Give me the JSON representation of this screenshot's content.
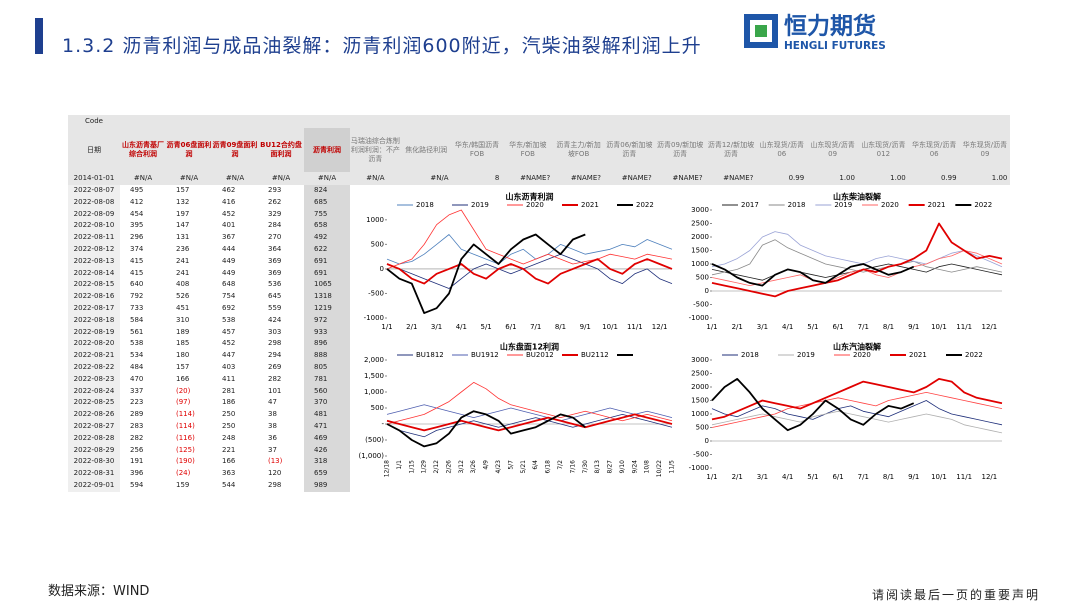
{
  "header": {
    "title": "1.3.2 沥青利润与成品油裂解：沥青利润600附近，汽柴油裂解利润上升",
    "logo_name": "恒力期货",
    "logo_en": "HENGLI FUTURES"
  },
  "table": {
    "code_label": "Code",
    "columns": [
      "日期",
      "山东沥青基厂综合利润",
      "沥青06盘面利润",
      "沥青09盘面利润",
      "BU12合约盘面利润",
      "沥青利润",
      "马瑞油综合炼制利润利润：不产沥青",
      "焦化路径利润",
      "华东/韩国沥青FOB",
      "华东/新加坡FOB",
      "沥青主力/新加坡FOB",
      "沥青06/新加坡沥青",
      "沥青09/新加坡沥青",
      "沥青12/新加坡沥青",
      "山东现货/沥青06",
      "山东现货/沥青09",
      "山东现货/沥青012",
      "华东现货/沥青06",
      "华东现货/沥青09"
    ],
    "first_row": [
      "2014-01-01",
      "#N/A",
      "#N/A",
      "#N/A",
      "#N/A",
      "#N/A",
      "#N/A",
      "#N/A",
      "8",
      "#NAME?",
      "#NAME?",
      "#NAME?",
      "#NAME?",
      "#NAME?",
      "0.99",
      "1.00",
      "1.00",
      "0.99",
      "1.00"
    ],
    "rows": [
      [
        "2022-08-07",
        "495",
        "157",
        "462",
        "293",
        "824"
      ],
      [
        "2022-08-08",
        "412",
        "132",
        "416",
        "262",
        "685"
      ],
      [
        "2022-08-09",
        "454",
        "197",
        "452",
        "329",
        "755"
      ],
      [
        "2022-08-10",
        "395",
        "147",
        "401",
        "284",
        "658"
      ],
      [
        "2022-08-11",
        "296",
        "131",
        "367",
        "270",
        "492"
      ],
      [
        "2022-08-12",
        "374",
        "236",
        "444",
        "364",
        "622"
      ],
      [
        "2022-08-13",
        "415",
        "241",
        "449",
        "369",
        "691"
      ],
      [
        "2022-08-14",
        "415",
        "241",
        "449",
        "369",
        "691"
      ],
      [
        "2022-08-15",
        "640",
        "408",
        "648",
        "536",
        "1065"
      ],
      [
        "2022-08-16",
        "792",
        "526",
        "754",
        "645",
        "1318"
      ],
      [
        "2022-08-17",
        "733",
        "451",
        "692",
        "559",
        "1219"
      ],
      [
        "2022-08-18",
        "584",
        "310",
        "538",
        "424",
        "972"
      ],
      [
        "2022-08-19",
        "561",
        "189",
        "457",
        "303",
        "933"
      ],
      [
        "2022-08-20",
        "538",
        "185",
        "452",
        "298",
        "896"
      ],
      [
        "2022-08-21",
        "534",
        "180",
        "447",
        "294",
        "888"
      ],
      [
        "2022-08-22",
        "484",
        "157",
        "403",
        "269",
        "805"
      ],
      [
        "2022-08-23",
        "470",
        "166",
        "411",
        "282",
        "781"
      ],
      [
        "2022-08-24",
        "337",
        "(20)",
        "281",
        "101",
        "560"
      ],
      [
        "2022-08-25",
        "223",
        "(97)",
        "186",
        "47",
        "370"
      ],
      [
        "2022-08-26",
        "289",
        "(114)",
        "250",
        "38",
        "481"
      ],
      [
        "2022-08-27",
        "283",
        "(114)",
        "250",
        "38",
        "471"
      ],
      [
        "2022-08-28",
        "282",
        "(116)",
        "248",
        "36",
        "469"
      ],
      [
        "2022-08-29",
        "256",
        "(125)",
        "221",
        "37",
        "426"
      ],
      [
        "2022-08-30",
        "191",
        "(190)",
        "166",
        "(13)",
        "318"
      ],
      [
        "2022-08-31",
        "396",
        "(24)",
        "363",
        "120",
        "659"
      ],
      [
        "2022-09-01",
        "594",
        "159",
        "544",
        "298",
        "989"
      ]
    ]
  },
  "chart_data": [
    {
      "type": "line",
      "title": "山东沥青利润",
      "ylim": [
        -1000,
        1200
      ],
      "yticks": [
        1000,
        500,
        0,
        -500,
        -1000
      ],
      "categories": [
        "1/1",
        null,
        "2/1",
        null,
        "3/1",
        null,
        "4/1",
        null,
        "5/1",
        null,
        "6/1",
        null,
        "7/1",
        null,
        "8/1",
        null,
        "9/1",
        null,
        "10/1",
        null,
        "11/1",
        null,
        "12/1",
        null
      ],
      "series": [
        {
          "name": "2018",
          "color": "#4f81bd",
          "values": [
            200,
            100,
            150,
            300,
            500,
            700,
            400,
            300,
            200,
            100,
            300,
            400,
            200,
            300,
            500,
            400,
            300,
            350,
            400,
            500,
            450,
            600,
            500,
            400
          ]
        },
        {
          "name": "2019",
          "color": "#1f2f7a",
          "values": [
            100,
            0,
            -100,
            -200,
            -300,
            -400,
            -200,
            0,
            100,
            0,
            -100,
            0,
            100,
            200,
            300,
            200,
            100,
            0,
            -200,
            -300,
            -100,
            0,
            -200,
            -300
          ]
        },
        {
          "name": "2020",
          "color": "#ff3333",
          "values": [
            0,
            100,
            200,
            500,
            900,
            1100,
            1200,
            800,
            400,
            300,
            200,
            100,
            200,
            300,
            200,
            100,
            150,
            200,
            300,
            250,
            200,
            300,
            250,
            200
          ]
        },
        {
          "name": "2021",
          "color": "#e00000",
          "thick": true,
          "values": [
            100,
            0,
            -200,
            -300,
            -100,
            0,
            100,
            -100,
            -200,
            0,
            100,
            0,
            -200,
            -300,
            -100,
            0,
            100,
            200,
            0,
            -100,
            100,
            200,
            100,
            0
          ]
        },
        {
          "name": "2022",
          "color": "#000000",
          "thick": true,
          "values": [
            0,
            -200,
            -300,
            -900,
            -800,
            -500,
            200,
            500,
            300,
            100,
            400,
            600,
            700,
            500,
            300,
            600,
            700,
            null,
            null,
            null,
            null,
            null,
            null,
            null
          ]
        }
      ]
    },
    {
      "type": "line",
      "title": "山东柴油裂解",
      "ylim": [
        -1000,
        3000
      ],
      "yticks": [
        3000,
        2500,
        2000,
        1500,
        1000,
        500,
        0,
        -500,
        -1000
      ],
      "categories": [
        "1/1",
        null,
        "2/1",
        null,
        "3/1",
        null,
        "4/1",
        null,
        "5/1",
        null,
        "6/1",
        null,
        "7/1",
        null,
        "8/1",
        null,
        "9/1",
        null,
        "10/1",
        null,
        "11/1",
        null,
        "12/1",
        null
      ],
      "series": [
        {
          "name": "2017",
          "color": "#222222",
          "values": [
            800,
            700,
            600,
            500,
            400,
            600,
            800,
            700,
            600,
            500,
            600,
            700,
            800,
            900,
            1000,
            900,
            800,
            700,
            900,
            1000,
            900,
            800,
            700,
            600
          ]
        },
        {
          "name": "2018",
          "color": "#8a8a8a",
          "values": [
            600,
            700,
            800,
            1000,
            1700,
            1900,
            1600,
            1400,
            1200,
            1000,
            900,
            800,
            700,
            800,
            900,
            1000,
            1100,
            900,
            800,
            700,
            800,
            900,
            800,
            700
          ]
        },
        {
          "name": "2019",
          "color": "#9aa3d6",
          "values": [
            900,
            1000,
            1200,
            1500,
            2000,
            2200,
            2100,
            1700,
            1500,
            1300,
            1200,
            1100,
            1000,
            1200,
            1300,
            1200,
            1100,
            1000,
            1200,
            1400,
            1500,
            1300,
            1100,
            900
          ]
        },
        {
          "name": "2020",
          "color": "#ff6666",
          "values": [
            500,
            400,
            300,
            200,
            300,
            400,
            500,
            600,
            400,
            300,
            500,
            700,
            800,
            600,
            500,
            700,
            900,
            1000,
            1200,
            1300,
            1500,
            1400,
            1200,
            1000
          ]
        },
        {
          "name": "2021",
          "color": "#e00000",
          "thick": true,
          "values": [
            300,
            200,
            100,
            0,
            -100,
            -200,
            0,
            100,
            200,
            300,
            400,
            600,
            800,
            700,
            900,
            1000,
            1200,
            1500,
            2500,
            1800,
            1500,
            1200,
            1300,
            1200
          ]
        },
        {
          "name": "2022",
          "color": "#000000",
          "thick": true,
          "values": [
            1000,
            800,
            500,
            300,
            200,
            600,
            800,
            700,
            400,
            300,
            600,
            900,
            1000,
            800,
            600,
            700,
            900,
            null,
            null,
            null,
            null,
            null,
            null,
            null
          ]
        }
      ]
    },
    {
      "type": "line",
      "title": "山东盘面12利润",
      "ylim": [
        -1000,
        2000
      ],
      "yticks": [
        {
          "value": 2000,
          "label": "2,000"
        },
        {
          "value": 1500,
          "label": "1,500"
        },
        {
          "value": 1000,
          "label": "1,000"
        },
        500,
        {
          "value": 0,
          "label": "-"
        },
        {
          "value": -500,
          "label": "(500)"
        },
        {
          "value": -1000,
          "label": "(1,000)"
        }
      ],
      "categories": [
        "12/18",
        "1/1",
        "1/15",
        "1/29",
        "2/12",
        "2/26",
        "3/12",
        "3/26",
        "4/9",
        "4/23",
        "5/7",
        "5/21",
        "6/4",
        "6/18",
        "7/2",
        "7/16",
        "7/30",
        "8/13",
        "8/27",
        "9/10",
        "9/24",
        "10/8",
        "10/22",
        "11/5"
      ],
      "series": [
        {
          "name": "BU1812",
          "color": "#1f2f7a",
          "values": [
            0,
            -200,
            -300,
            -400,
            -200,
            -100,
            0,
            100,
            0,
            -100,
            0,
            100,
            200,
            100,
            0,
            -100,
            0,
            100,
            200,
            300,
            200,
            100,
            0,
            -100
          ]
        },
        {
          "name": "BU1912",
          "color": "#4f5fb0",
          "values": [
            300,
            400,
            500,
            600,
            500,
            400,
            300,
            200,
            300,
            400,
            500,
            400,
            300,
            200,
            100,
            200,
            300,
            400,
            500,
            400,
            300,
            400,
            300,
            200
          ]
        },
        {
          "name": "BU2012",
          "color": "#ff3333",
          "values": [
            0,
            100,
            200,
            300,
            500,
            700,
            1000,
            1300,
            1100,
            800,
            600,
            500,
            400,
            300,
            200,
            300,
            400,
            300,
            200,
            100,
            200,
            300,
            200,
            100
          ]
        },
        {
          "name": "BU2112",
          "color": "#e00000",
          "thick": true,
          "values": [
            100,
            0,
            -100,
            -200,
            -100,
            0,
            100,
            0,
            -100,
            -200,
            -100,
            0,
            100,
            200,
            100,
            0,
            -100,
            0,
            100,
            200,
            300,
            200,
            100,
            0
          ]
        },
        {
          "name": null,
          "color": "#000000",
          "thick": true,
          "values": [
            0,
            -200,
            -500,
            -700,
            -600,
            -300,
            200,
            400,
            300,
            100,
            -300,
            -200,
            -100,
            100,
            300,
            200,
            -100,
            null,
            null,
            null,
            null,
            null,
            null,
            null
          ]
        }
      ]
    },
    {
      "type": "line",
      "title": "山东汽油裂解",
      "ylim": [
        -1000,
        3000
      ],
      "yticks": [
        3000,
        2500,
        2000,
        1500,
        1000,
        500,
        0,
        -500,
        -1000
      ],
      "categories": [
        "1/1",
        null,
        "2/1",
        null,
        "3/1",
        null,
        "4/1",
        null,
        "5/1",
        null,
        "6/1",
        null,
        "7/1",
        null,
        "8/1",
        null,
        "9/1",
        null,
        "10/1",
        null,
        "11/1",
        null,
        "12/1",
        null
      ],
      "series": [
        {
          "name": "2018",
          "color": "#1f2f7a",
          "values": [
            1200,
            1000,
            900,
            1100,
            1300,
            1200,
            1000,
            900,
            800,
            1000,
            1200,
            1300,
            1100,
            1000,
            900,
            1100,
            1300,
            1500,
            1200,
            1000,
            900,
            800,
            700,
            600
          ]
        },
        {
          "name": "2019",
          "color": "#b0b0b0",
          "values": [
            600,
            700,
            800,
            900,
            1000,
            900,
            800,
            700,
            900,
            1000,
            1100,
            1000,
            900,
            800,
            700,
            800,
            900,
            1000,
            900,
            800,
            600,
            500,
            400,
            300
          ]
        },
        {
          "name": "2020",
          "color": "#ff4444",
          "values": [
            500,
            600,
            700,
            800,
            900,
            1000,
            1200,
            1300,
            1400,
            1500,
            1600,
            1500,
            1400,
            1300,
            1500,
            1600,
            1700,
            1800,
            1700,
            1600,
            1500,
            1400,
            1300,
            1200
          ]
        },
        {
          "name": "2021",
          "color": "#e00000",
          "thick": true,
          "values": [
            800,
            900,
            1100,
            1300,
            1500,
            1400,
            1300,
            1200,
            1400,
            1600,
            1800,
            2000,
            2200,
            2100,
            2000,
            1900,
            1800,
            2000,
            2300,
            2200,
            1800,
            1600,
            1500,
            1400
          ]
        },
        {
          "name": "2022",
          "color": "#000000",
          "thick": true,
          "values": [
            1500,
            2000,
            2300,
            1800,
            1200,
            800,
            400,
            600,
            1000,
            1500,
            1200,
            800,
            600,
            1000,
            1300,
            1200,
            1400,
            null,
            null,
            null,
            null,
            null,
            null,
            null
          ]
        }
      ]
    }
  ],
  "footer": {
    "source": "数据来源：WIND",
    "notice": "请阅读最后一页的重要声明"
  }
}
